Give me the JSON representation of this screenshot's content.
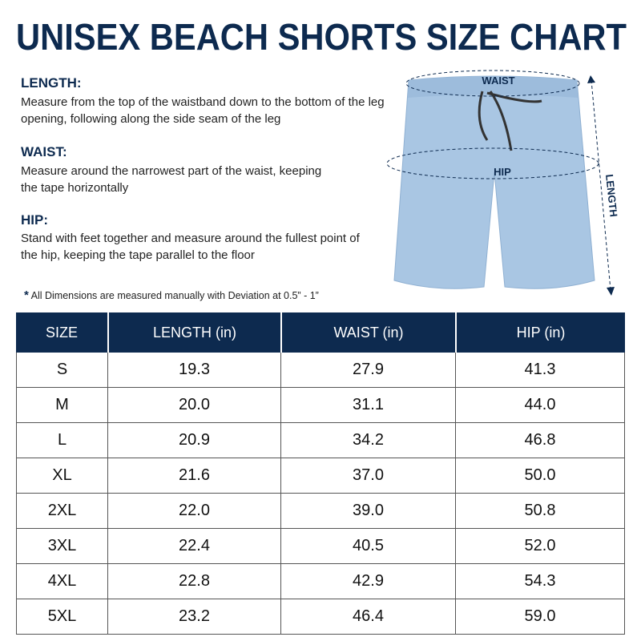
{
  "header": {
    "title": "UNISEX BEACH SHORTS SIZE CHART"
  },
  "sections": [
    {
      "heading": "LENGTH:",
      "text": "Measure from the top of the waistband down to the bottom of the leg opening, following along the side seam of the leg"
    },
    {
      "heading": "WAIST:",
      "text": "Measure around the narrowest part of the waist, keeping the tape horizontally"
    },
    {
      "heading": "HIP:",
      "text": "Stand with feet together and measure around the fullest point of the hip, keeping the tape parallel to the floor"
    }
  ],
  "note": {
    "marker": "*",
    "text": "All Dimensions are measured manually with Deviation at 0.5” - 1”"
  },
  "diagram": {
    "waist": "WAIST",
    "hip": "HIP",
    "length": "LENGTH"
  },
  "table": {
    "columns": [
      "SIZE",
      "LENGTH (in)",
      "WAIST (in)",
      "HIP (in)"
    ],
    "rows": [
      [
        "S",
        "19.3",
        "27.9",
        "41.3"
      ],
      [
        "M",
        "20.0",
        "31.1",
        "44.0"
      ],
      [
        "L",
        "20.9",
        "34.2",
        "46.8"
      ],
      [
        "XL",
        "21.6",
        "37.0",
        "50.0"
      ],
      [
        "2XL",
        "22.0",
        "39.0",
        "50.8"
      ],
      [
        "3XL",
        "22.4",
        "40.5",
        "52.0"
      ],
      [
        "4XL",
        "22.8",
        "42.9",
        "54.3"
      ],
      [
        "5XL",
        "23.2",
        "46.4",
        "59.0"
      ]
    ]
  }
}
